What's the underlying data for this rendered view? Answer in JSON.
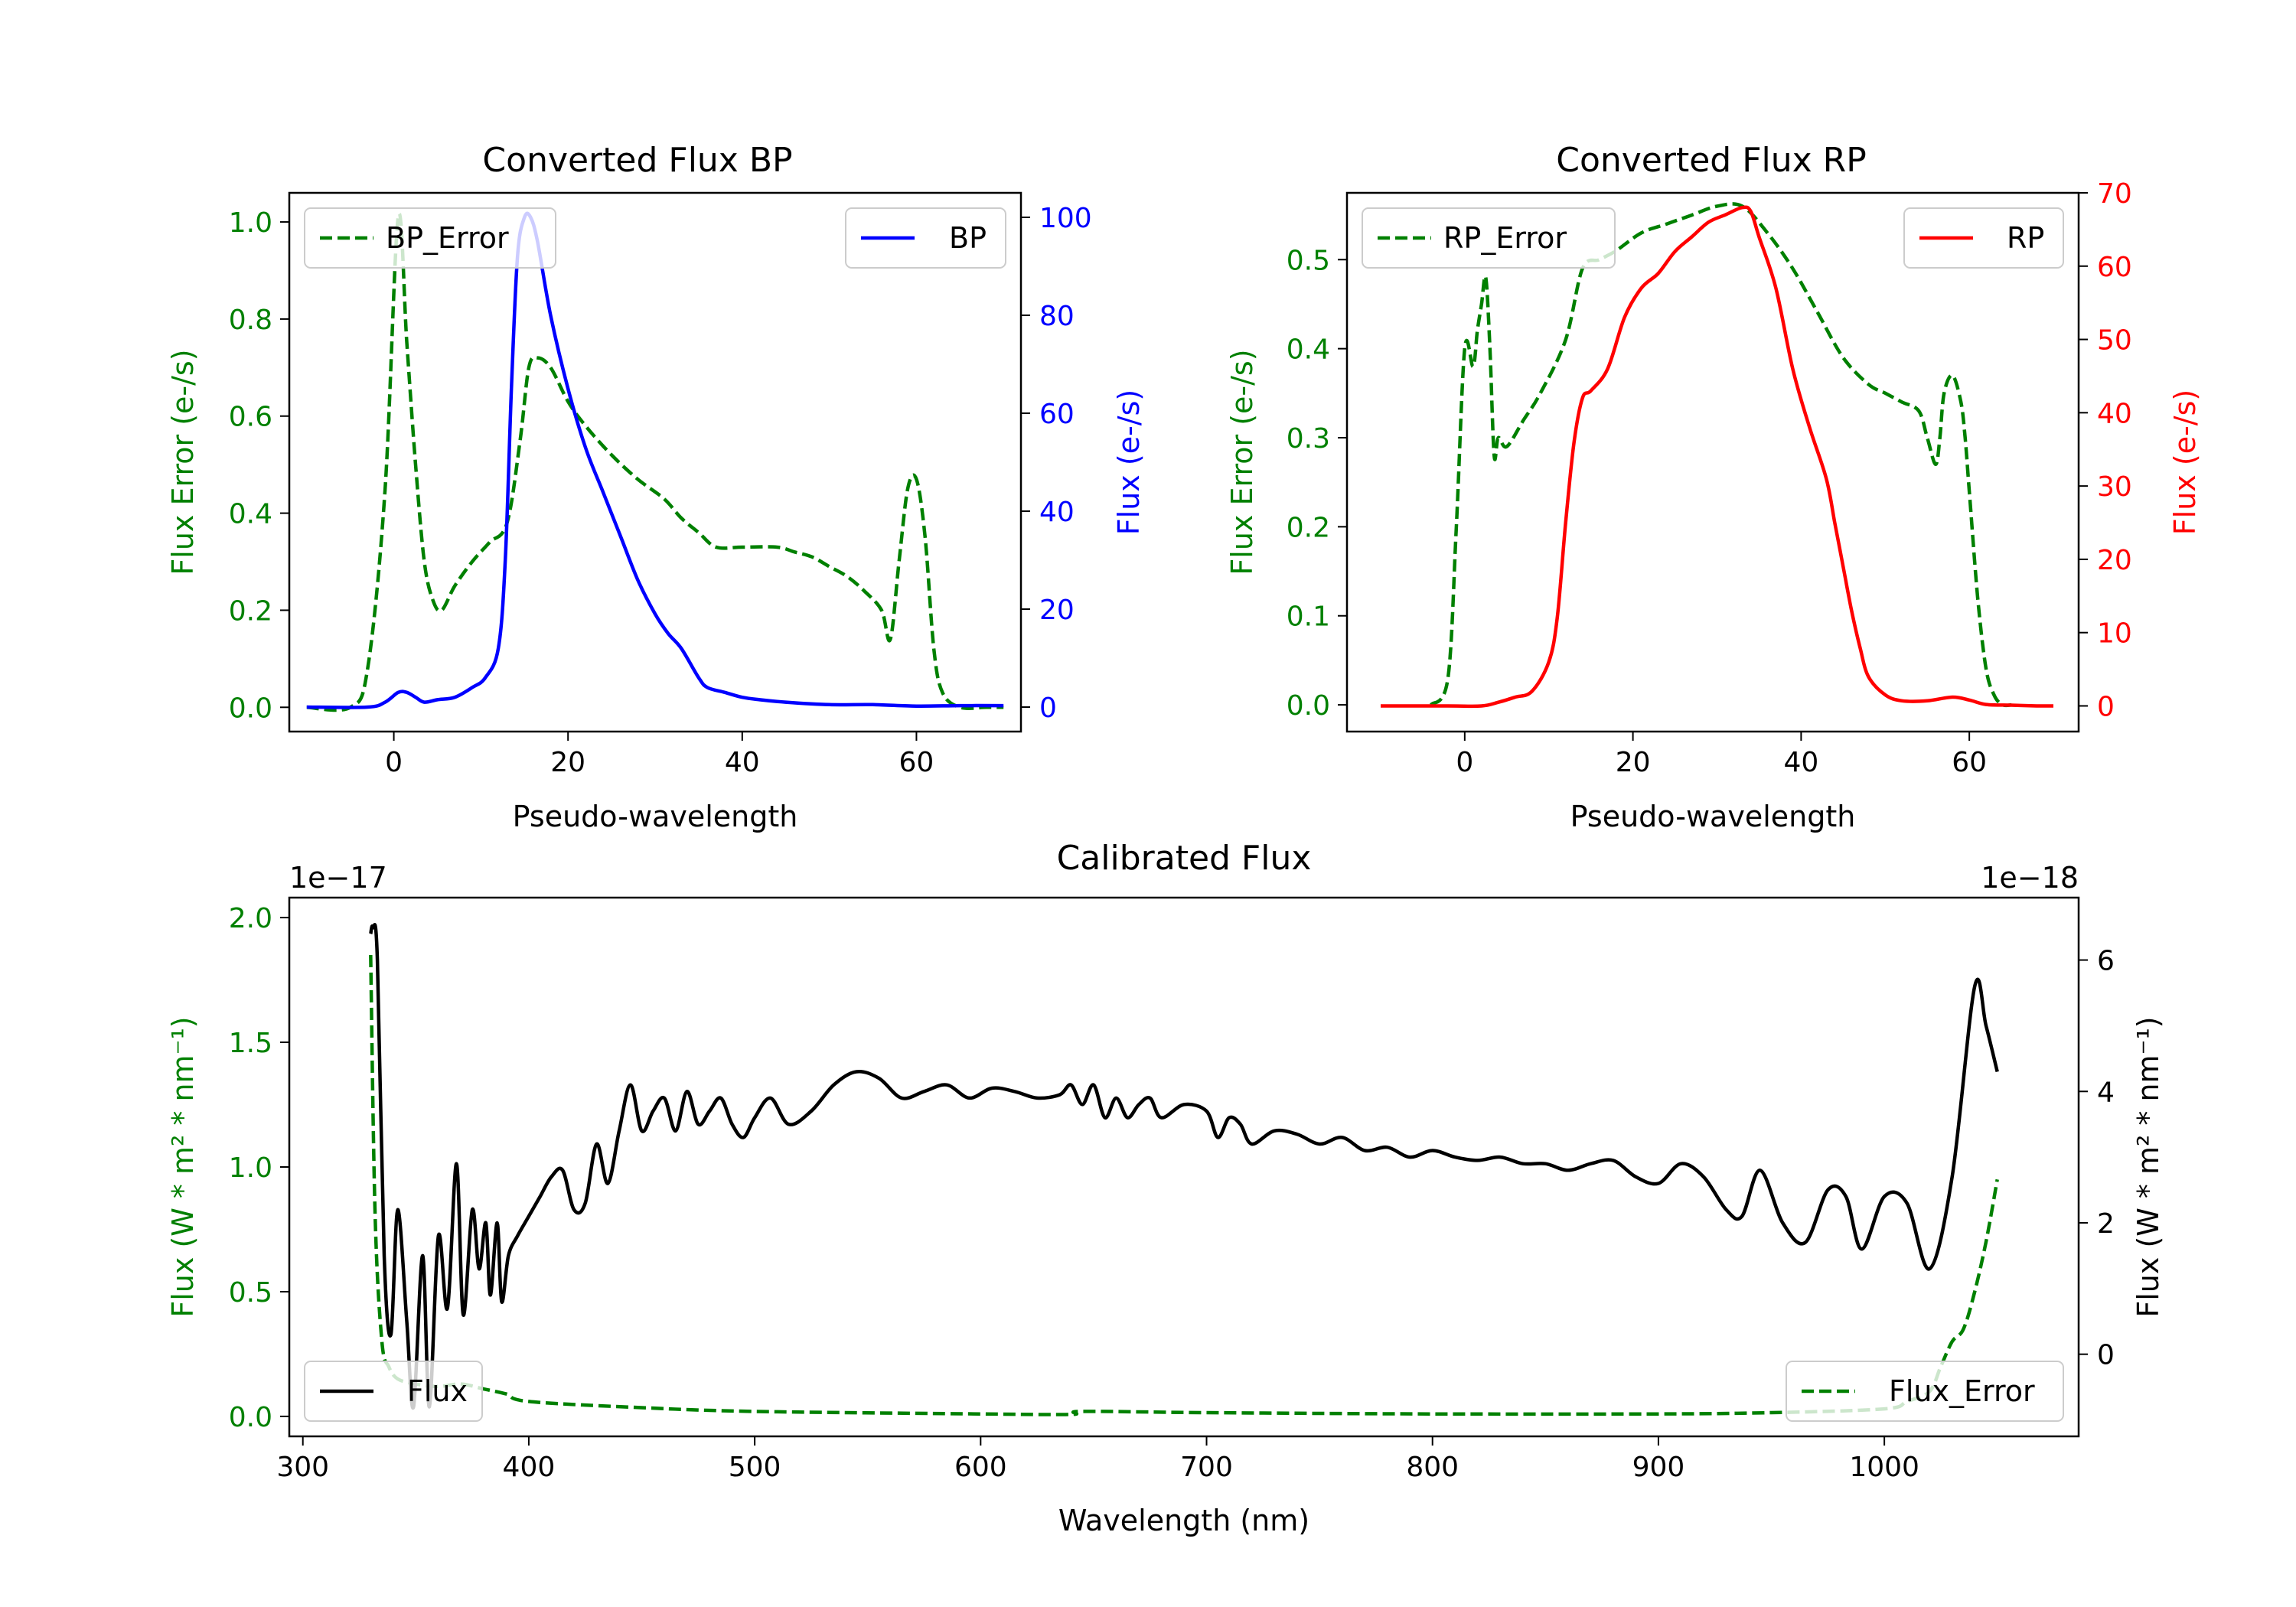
{
  "colors": {
    "bp": "#0000ff",
    "rp": "#ff0000",
    "error": "#008000",
    "flux": "#000000",
    "axis": "#000000"
  },
  "chart_data": [
    {
      "id": "bp",
      "type": "line",
      "title": "Converted Flux BP",
      "xlabel": "Pseudo-wavelength",
      "ylabel_left": "Flux Error (e-/s)",
      "ylabel_right": "Flux (e-/s)",
      "xlim": [
        -12,
        72
      ],
      "ylim_left": [
        -0.05,
        1.06
      ],
      "ylim_right": [
        -5,
        105
      ],
      "xticks": [
        0,
        20,
        40,
        60
      ],
      "yticks_left": [
        0.0,
        0.2,
        0.4,
        0.6,
        0.8,
        1.0
      ],
      "yticks_right": [
        0,
        20,
        40,
        60,
        80,
        100
      ],
      "legend_left": {
        "label": "BP_Error",
        "position": "upper-left"
      },
      "legend_right": {
        "label": "BP",
        "position": "upper-right"
      },
      "series": [
        {
          "name": "BP_Error",
          "axis": "left",
          "style": "dashed",
          "color": "#008000",
          "x": [
            -10,
            -5,
            -3,
            -1,
            0.5,
            1.5,
            2.5,
            3.5,
            4.5,
            5.5,
            7,
            9,
            11,
            13,
            14.5,
            15.5,
            16.5,
            18,
            20,
            22,
            25,
            28,
            31,
            33,
            35,
            37,
            40,
            44,
            46,
            48,
            50,
            52,
            54,
            56,
            57,
            58,
            59,
            60,
            61,
            62,
            63,
            65,
            68,
            70
          ],
          "y": [
            0,
            0.0,
            0.08,
            0.45,
            1.01,
            0.75,
            0.5,
            0.3,
            0.22,
            0.2,
            0.25,
            0.3,
            0.34,
            0.38,
            0.55,
            0.7,
            0.72,
            0.7,
            0.63,
            0.58,
            0.52,
            0.47,
            0.43,
            0.39,
            0.36,
            0.33,
            0.33,
            0.33,
            0.32,
            0.31,
            0.29,
            0.27,
            0.24,
            0.2,
            0.14,
            0.3,
            0.45,
            0.47,
            0.35,
            0.12,
            0.03,
            0.0,
            0.0,
            0.0
          ]
        },
        {
          "name": "BP",
          "axis": "right",
          "style": "solid",
          "color": "#0000ff",
          "x": [
            -10,
            -3,
            -1,
            0.5,
            1.5,
            2.5,
            3.5,
            5,
            7,
            9,
            10.5,
            12,
            12.8,
            13.5,
            14.2,
            15,
            15.7,
            16.5,
            18,
            20,
            22,
            24,
            26,
            28,
            30,
            31.5,
            33,
            35,
            36,
            38,
            40,
            42,
            45,
            50,
            55,
            60,
            65,
            70
          ],
          "y": [
            0,
            0,
            1,
            3,
            3,
            2,
            1,
            1.5,
            2,
            4,
            6,
            12,
            30,
            65,
            92,
            100,
            100,
            95,
            80,
            65,
            53,
            44,
            35,
            26,
            19,
            15,
            12,
            6,
            4,
            3,
            2,
            1.5,
            1,
            0.5,
            0.5,
            0.2,
            0.3,
            0.3
          ]
        }
      ]
    },
    {
      "id": "rp",
      "type": "line",
      "title": "Converted Flux RP",
      "xlabel": "Pseudo-wavelength",
      "ylabel_left": "Flux Error (e-/s)",
      "ylabel_right": "Flux (e-/s)",
      "xlim": [
        -14,
        73
      ],
      "ylim_left": [
        -0.03,
        0.575
      ],
      "ylim_right": [
        -3.5,
        70
      ],
      "xticks": [
        0,
        20,
        40,
        60
      ],
      "yticks_left": [
        0.0,
        0.1,
        0.2,
        0.3,
        0.4,
        0.5
      ],
      "yticks_right": [
        0,
        10,
        20,
        30,
        40,
        50,
        60,
        70
      ],
      "legend_left": {
        "label": "RP_Error",
        "position": "upper-left"
      },
      "legend_right": {
        "label": "RP",
        "position": "upper-right"
      },
      "series": [
        {
          "name": "RP_Error",
          "axis": "left",
          "style": "dashed",
          "color": "#008000",
          "x": [
            -4,
            -2,
            -1,
            0,
            1,
            1.5,
            2,
            2.5,
            3,
            3.5,
            4,
            5,
            7,
            9,
            12,
            14,
            16,
            18,
            21,
            24,
            27,
            30,
            33,
            36,
            39,
            42,
            45,
            48,
            50,
            52,
            54,
            55,
            56,
            56.5,
            57,
            58,
            59,
            59.5,
            60,
            61,
            62,
            63,
            64,
            65
          ],
          "y": [
            0,
            0.03,
            0.2,
            0.4,
            0.38,
            0.42,
            0.45,
            0.48,
            0.4,
            0.28,
            0.3,
            0.29,
            0.32,
            0.35,
            0.41,
            0.49,
            0.5,
            0.51,
            0.53,
            0.54,
            0.55,
            0.56,
            0.56,
            0.53,
            0.49,
            0.44,
            0.39,
            0.36,
            0.35,
            0.34,
            0.33,
            0.3,
            0.27,
            0.3,
            0.35,
            0.37,
            0.34,
            0.3,
            0.24,
            0.12,
            0.04,
            0.01,
            0.0,
            0.0
          ]
        },
        {
          "name": "RP",
          "axis": "right",
          "style": "solid",
          "color": "#ff0000",
          "x": [
            -10,
            -2,
            2,
            4,
            6,
            8,
            10,
            11,
            12,
            13,
            14,
            15,
            17,
            19,
            21,
            23,
            25,
            27,
            29,
            31,
            33,
            34,
            35,
            37,
            39,
            41,
            43,
            44,
            45,
            46,
            47,
            48,
            50,
            52,
            55,
            58,
            60,
            62,
            65,
            68,
            70
          ],
          "y": [
            0,
            0,
            0,
            0.5,
            1.2,
            2,
            6,
            12,
            25,
            36,
            42,
            43,
            46,
            53,
            57,
            59,
            62,
            64,
            66,
            67,
            68,
            67.5,
            64,
            57,
            46,
            38,
            31,
            25,
            19,
            13,
            8,
            4,
            1.5,
            0.7,
            0.7,
            1.2,
            0.8,
            0.2,
            0.1,
            0,
            0
          ]
        }
      ]
    },
    {
      "id": "cal",
      "type": "line",
      "title": "Calibrated Flux",
      "xlabel": "Wavelength (nm)",
      "ylabel_left": "Flux (W * m² * nm⁻¹)",
      "ylabel_right": "Flux (W * m² * nm⁻¹)",
      "offset_left": "1e−17",
      "offset_right": "1e−18",
      "xlim": [
        294,
        1086
      ],
      "ylim_left": [
        -0.08,
        2.08
      ],
      "ylim_right": [
        -1.25,
        6.95
      ],
      "xticks": [
        300,
        400,
        500,
        600,
        700,
        800,
        900,
        1000
      ],
      "yticks_left": [
        0.0,
        0.5,
        1.0,
        1.5,
        2.0
      ],
      "yticks_right": [
        0,
        2,
        4,
        6
      ],
      "legend_left": {
        "label": "Flux",
        "position": "lower-left"
      },
      "legend_right": {
        "label": "Flux_Error",
        "position": "lower-right"
      },
      "series": [
        {
          "name": "Flux_Error",
          "axis": "left",
          "style": "dashed",
          "color": "#008000",
          "x": [
            330,
            332,
            335,
            338,
            342,
            350,
            360,
            370,
            380,
            390,
            400,
            450,
            500,
            600,
            640,
            645,
            700,
            800,
            900,
            950,
            1000,
            1010,
            1020,
            1025,
            1030,
            1035,
            1040,
            1045,
            1050
          ],
          "y": [
            1.85,
            0.8,
            0.3,
            0.2,
            0.15,
            0.13,
            0.12,
            0.13,
            0.11,
            0.09,
            0.06,
            0.035,
            0.02,
            0.01,
            0.008,
            0.02,
            0.015,
            0.01,
            0.01,
            0.015,
            0.03,
            0.06,
            0.1,
            0.2,
            0.3,
            0.35,
            0.5,
            0.7,
            0.95
          ]
        },
        {
          "name": "Flux",
          "axis": "right",
          "style": "solid",
          "color": "#000000",
          "x": [
            330,
            331,
            333,
            336,
            339,
            342,
            346,
            349,
            353,
            356,
            360,
            364,
            368,
            371,
            375,
            378,
            381,
            383,
            386,
            388,
            391,
            395,
            400,
            405,
            410,
            415,
            420,
            425,
            430,
            435,
            440,
            445,
            450,
            455,
            460,
            465,
            470,
            475,
            480,
            485,
            490,
            495,
            500,
            507,
            515,
            525,
            535,
            545,
            555,
            565,
            575,
            585,
            595,
            605,
            615,
            625,
            635,
            640,
            645,
            650,
            655,
            660,
            665,
            670,
            675,
            680,
            690,
            700,
            705,
            710,
            715,
            720,
            730,
            740,
            750,
            760,
            770,
            780,
            790,
            800,
            810,
            820,
            830,
            840,
            850,
            860,
            870,
            880,
            890,
            900,
            910,
            920,
            930,
            937,
            945,
            955,
            965,
            975,
            983,
            990,
            1000,
            1010,
            1020,
            1030,
            1040,
            1045,
            1050
          ],
          "y": [
            6.4,
            6.5,
            6,
            1.5,
            0.3,
            2.2,
            0.5,
            -0.8,
            1.5,
            -0.8,
            1.8,
            0.7,
            2.9,
            0.6,
            2.2,
            1.3,
            2,
            0.9,
            2,
            0.8,
            1.5,
            1.8,
            2.1,
            2.4,
            2.7,
            2.8,
            2.2,
            2.3,
            3.2,
            2.6,
            3.4,
            4.1,
            3.4,
            3.7,
            3.9,
            3.4,
            4,
            3.5,
            3.7,
            3.9,
            3.5,
            3.3,
            3.6,
            3.9,
            3.5,
            3.7,
            4.1,
            4.3,
            4.2,
            3.9,
            4,
            4.1,
            3.9,
            4.05,
            4.0,
            3.9,
            3.95,
            4.1,
            3.8,
            4.1,
            3.6,
            3.9,
            3.6,
            3.8,
            3.9,
            3.6,
            3.8,
            3.7,
            3.3,
            3.6,
            3.5,
            3.2,
            3.4,
            3.35,
            3.2,
            3.3,
            3.1,
            3.15,
            3.0,
            3.1,
            3.0,
            2.95,
            3.0,
            2.9,
            2.9,
            2.8,
            2.9,
            2.95,
            2.7,
            2.6,
            2.9,
            2.7,
            2.2,
            2.1,
            2.8,
            2.0,
            1.7,
            2.5,
            2.4,
            1.6,
            2.4,
            2.3,
            1.3,
            2.7,
            5.6,
            5.0,
            4.3
          ]
        }
      ]
    }
  ]
}
